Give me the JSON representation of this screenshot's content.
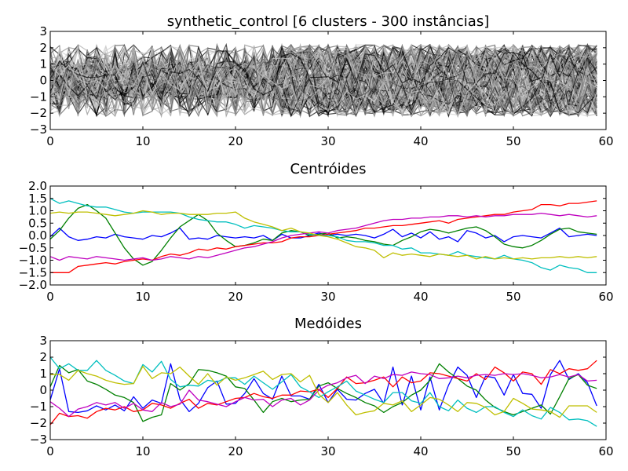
{
  "figure": {
    "background": "#ffffff"
  },
  "chart_data": [
    {
      "type": "line",
      "title": "synthetic_control [6 clusters - 300 instâncias]",
      "xlabel": "",
      "ylabel": "",
      "xlim": [
        0,
        60
      ],
      "ylim": [
        -3,
        3
      ],
      "xticks": [
        "0",
        "10",
        "20",
        "30",
        "40",
        "50",
        "60"
      ],
      "yticks": [
        "3",
        "2",
        "1",
        "0",
        "−1",
        "−2",
        "−3"
      ],
      "grid": false,
      "note_series": "300 grayscale instance series, drawn as an aggregate band",
      "band_colors": [
        "#000000",
        "#555555",
        "#888888",
        "#aaaaaa",
        "#cccccc"
      ],
      "regimes": [
        {
          "from": 0,
          "to": 30,
          "center": 0.0,
          "spread": 2.2
        },
        {
          "from": 25,
          "to": 60,
          "center": 1.0,
          "spread": 1.2
        },
        {
          "from": 25,
          "to": 60,
          "center": -1.0,
          "spread": 1.2
        }
      ]
    },
    {
      "type": "line",
      "title": "Centróides",
      "xlabel": "",
      "ylabel": "",
      "xlim": [
        0,
        60
      ],
      "ylim": [
        -2.0,
        2.0
      ],
      "xticks": [
        "0",
        "10",
        "20",
        "30",
        "40",
        "50",
        "60"
      ],
      "yticks": [
        "2.0",
        "1.5",
        "1.0",
        "0.5",
        "0.0",
        "−0.5",
        "−1.0",
        "−1.5",
        "−2.0"
      ],
      "grid": false,
      "series": [
        {
          "color": "#0000ff",
          "values": [
            -0.05,
            0.3,
            -0.05,
            -0.2,
            -0.15,
            -0.05,
            -0.1,
            0.05,
            -0.05,
            -0.1,
            -0.15,
            0.0,
            -0.05,
            0.1,
            0.3,
            -0.15,
            -0.1,
            -0.15,
            0.0,
            -0.05,
            -0.1,
            -0.05,
            -0.1,
            0.0,
            -0.2,
            0.05,
            -0.1,
            -0.1,
            0.0,
            0.1,
            0.0,
            0.05,
            0.0,
            0.05,
            0.0,
            -0.1,
            0.05,
            0.25,
            -0.05,
            0.1,
            -0.1,
            0.15,
            -0.15,
            -0.05,
            -0.25,
            0.2,
            0.1,
            -0.1,
            0.0,
            -0.25,
            -0.05,
            0.0,
            -0.05,
            -0.1,
            0.1,
            0.3,
            -0.05,
            0.0,
            0.05,
            0.0
          ]
        },
        {
          "color": "#008000",
          "values": [
            -0.15,
            0.2,
            0.7,
            1.1,
            1.25,
            1.0,
            0.7,
            0.1,
            -0.5,
            -0.95,
            -1.2,
            -1.05,
            -0.6,
            -0.1,
            0.35,
            0.6,
            0.85,
            0.6,
            0.1,
            -0.2,
            -0.45,
            -0.4,
            -0.3,
            -0.15,
            -0.2,
            0.1,
            0.2,
            0.15,
            0.0,
            0.05,
            0.1,
            -0.1,
            -0.05,
            -0.1,
            -0.2,
            -0.25,
            -0.35,
            -0.4,
            -0.2,
            -0.05,
            0.15,
            0.25,
            0.2,
            0.1,
            0.2,
            0.3,
            0.35,
            0.2,
            -0.05,
            -0.35,
            -0.45,
            -0.5,
            -0.4,
            -0.2,
            0.05,
            0.25,
            0.3,
            0.15,
            0.1,
            0.05
          ]
        },
        {
          "color": "#ff0000",
          "values": [
            -1.5,
            -1.5,
            -1.5,
            -1.25,
            -1.2,
            -1.15,
            -1.1,
            -1.15,
            -1.05,
            -1.0,
            -0.95,
            -1.0,
            -0.85,
            -0.75,
            -0.8,
            -0.7,
            -0.55,
            -0.6,
            -0.5,
            -0.55,
            -0.45,
            -0.4,
            -0.35,
            -0.3,
            -0.3,
            -0.25,
            -0.1,
            -0.05,
            -0.05,
            0.0,
            0.05,
            0.1,
            0.15,
            0.2,
            0.3,
            0.3,
            0.35,
            0.4,
            0.4,
            0.45,
            0.5,
            0.55,
            0.6,
            0.5,
            0.65,
            0.7,
            0.75,
            0.8,
            0.85,
            0.85,
            0.95,
            1.0,
            1.05,
            1.25,
            1.25,
            1.2,
            1.3,
            1.3,
            1.35,
            1.4
          ]
        },
        {
          "color": "#00bfbf",
          "values": [
            1.5,
            1.3,
            1.4,
            1.3,
            1.2,
            1.15,
            1.15,
            1.05,
            0.95,
            0.9,
            0.95,
            0.95,
            0.95,
            0.95,
            0.9,
            0.75,
            0.65,
            0.6,
            0.55,
            0.55,
            0.45,
            0.3,
            0.4,
            0.35,
            0.3,
            0.2,
            0.15,
            0.15,
            0.05,
            0.0,
            0.0,
            -0.05,
            -0.2,
            -0.25,
            -0.25,
            -0.3,
            -0.4,
            -0.4,
            -0.55,
            -0.5,
            -0.7,
            -0.7,
            -0.75,
            -0.8,
            -0.65,
            -0.8,
            -0.85,
            -0.9,
            -0.95,
            -0.8,
            -0.95,
            -1.0,
            -1.1,
            -1.3,
            -1.4,
            -1.2,
            -1.3,
            -1.35,
            -1.5,
            -1.5
          ]
        },
        {
          "color": "#bf00bf",
          "values": [
            -0.85,
            -1.0,
            -0.85,
            -0.9,
            -0.95,
            -0.85,
            -0.9,
            -0.95,
            -1.0,
            -0.95,
            -0.9,
            -1.0,
            -0.95,
            -0.85,
            -0.9,
            -0.95,
            -0.85,
            -0.9,
            -0.8,
            -0.7,
            -0.6,
            -0.5,
            -0.45,
            -0.35,
            -0.25,
            -0.1,
            0.0,
            0.05,
            0.1,
            0.15,
            0.1,
            0.2,
            0.25,
            0.3,
            0.4,
            0.5,
            0.6,
            0.65,
            0.65,
            0.7,
            0.7,
            0.75,
            0.75,
            0.8,
            0.8,
            0.75,
            0.8,
            0.75,
            0.8,
            0.8,
            0.85,
            0.85,
            0.85,
            0.9,
            0.85,
            0.8,
            0.85,
            0.8,
            0.75,
            0.8
          ]
        },
        {
          "color": "#bfbf00",
          "values": [
            0.9,
            0.95,
            0.9,
            0.95,
            0.95,
            0.9,
            0.85,
            0.8,
            0.85,
            0.9,
            1.0,
            0.95,
            0.85,
            0.9,
            0.9,
            0.85,
            0.85,
            0.85,
            0.9,
            0.9,
            0.95,
            0.7,
            0.55,
            0.45,
            0.35,
            0.2,
            0.3,
            0.15,
            0.1,
            0.0,
            -0.05,
            -0.15,
            -0.3,
            -0.45,
            -0.5,
            -0.6,
            -0.9,
            -0.7,
            -0.8,
            -0.75,
            -0.8,
            -0.85,
            -0.75,
            -0.8,
            -0.85,
            -0.8,
            -0.95,
            -0.85,
            -0.95,
            -0.9,
            -0.95,
            -0.9,
            -0.95,
            -0.9,
            -0.9,
            -0.85,
            -0.9,
            -0.85,
            -0.9,
            -0.85
          ]
        }
      ]
    },
    {
      "type": "line",
      "title": "Medóides",
      "xlabel": "",
      "ylabel": "",
      "xlim": [
        0,
        60
      ],
      "ylim": [
        -3,
        3
      ],
      "xticks": [
        "0",
        "10",
        "20",
        "30",
        "40",
        "50",
        "60"
      ],
      "yticks": [
        "3",
        "2",
        "1",
        "0",
        "−1",
        "−2",
        "−3"
      ],
      "grid": false,
      "series": [
        {
          "color": "#0000ff",
          "values": [
            -0.6,
            1.3,
            -1.3,
            -1.35,
            -1.25,
            -0.95,
            -1.2,
            -0.9,
            -1.25,
            -0.4,
            -1.1,
            -0.6,
            -0.8,
            1.6,
            -0.55,
            -1.3,
            -0.8,
            0.15,
            0.55,
            -0.85,
            -0.8,
            -0.2,
            0.7,
            -0.2,
            -0.55,
            0.85,
            -0.35,
            -0.35,
            -0.55,
            0.35,
            -0.75,
            0.05,
            -0.55,
            -0.6,
            -0.2,
            0.05,
            -0.8,
            1.4,
            -0.9,
            0.85,
            -1.2,
            0.8,
            -1.2,
            0.3,
            1.4,
            0.9,
            -0.45,
            0.85,
            0.75,
            -0.3,
            0.95,
            -0.2,
            -0.25,
            -1.1,
            0.95,
            1.8,
            0.65,
            1.0,
            0.45,
            -0.95
          ]
        },
        {
          "color": "#008000",
          "values": [
            0.2,
            1.5,
            1.05,
            1.25,
            0.55,
            0.35,
            0.05,
            -0.3,
            -0.45,
            -0.75,
            -1.9,
            -1.65,
            -1.5,
            0.4,
            0.0,
            0.4,
            1.25,
            1.2,
            1.05,
            0.85,
            0.2,
            0.1,
            -0.6,
            -1.35,
            -0.7,
            -0.5,
            -0.7,
            -0.6,
            -0.55,
            0.25,
            0.45,
            0.1,
            -0.2,
            -0.45,
            -0.75,
            -0.95,
            -1.35,
            -1.0,
            -0.75,
            -0.3,
            0.0,
            0.6,
            1.6,
            1.1,
            0.7,
            0.25,
            0.0,
            -0.6,
            -1.05,
            -1.3,
            -1.5,
            -1.3,
            -1.1,
            -0.9,
            -1.45,
            -0.4,
            0.7,
            0.95,
            0.3,
            0.1
          ]
        },
        {
          "color": "#ff0000",
          "values": [
            -2.1,
            -1.4,
            -1.6,
            -1.55,
            -1.7,
            -1.3,
            -1.1,
            -1.2,
            -1.0,
            -1.3,
            -1.2,
            -0.8,
            -0.9,
            -1.1,
            -0.8,
            -0.55,
            -1.1,
            -0.8,
            -0.9,
            -0.7,
            -0.5,
            -0.45,
            -0.2,
            -0.4,
            -0.5,
            -0.3,
            -0.3,
            -0.05,
            -0.1,
            0.05,
            -0.45,
            0.1,
            0.8,
            0.4,
            0.45,
            0.6,
            0.8,
            0.2,
            0.8,
            0.45,
            0.55,
            1.05,
            1.0,
            0.85,
            0.7,
            0.55,
            1.0,
            0.65,
            1.4,
            1.05,
            0.55,
            1.1,
            1.0,
            0.35,
            1.25,
            1.0,
            1.3,
            1.2,
            1.3,
            1.8
          ]
        },
        {
          "color": "#00bfbf",
          "values": [
            2.0,
            1.3,
            1.6,
            1.2,
            1.2,
            1.8,
            1.2,
            0.9,
            0.55,
            0.4,
            1.55,
            1.1,
            1.75,
            0.65,
            0.2,
            0.3,
            0.25,
            0.6,
            0.5,
            0.75,
            0.75,
            0.35,
            0.85,
            0.45,
            0.05,
            0.5,
            0.95,
            0.2,
            -0.1,
            -0.45,
            -0.1,
            0.2,
            0.55,
            -0.05,
            -0.3,
            -0.55,
            -0.75,
            -0.15,
            -0.15,
            -0.65,
            -0.8,
            -0.15,
            -1.0,
            -1.25,
            -0.6,
            -1.1,
            -1.35,
            -1.0,
            -1.0,
            -1.35,
            -1.6,
            -1.2,
            -1.55,
            -1.75,
            -1.05,
            -1.35,
            -1.8,
            -1.75,
            -1.85,
            -2.2
          ]
        },
        {
          "color": "#bf00bf",
          "values": [
            -0.7,
            -1.1,
            -1.6,
            -1.15,
            -1.0,
            -0.75,
            -0.9,
            -0.75,
            -1.1,
            -0.8,
            -1.2,
            -1.3,
            -0.75,
            -1.0,
            -0.85,
            0.0,
            -0.6,
            -0.7,
            -0.85,
            -1.0,
            -0.7,
            -0.45,
            -0.6,
            -0.55,
            -1.0,
            -0.6,
            -0.5,
            -0.9,
            -0.6,
            0.0,
            0.3,
            0.45,
            0.75,
            0.9,
            0.4,
            0.85,
            0.7,
            0.95,
            0.9,
            1.1,
            1.0,
            0.95,
            0.7,
            0.75,
            0.85,
            0.75,
            0.9,
            0.95,
            0.9,
            1.0,
            0.95,
            1.0,
            0.9,
            0.75,
            0.8,
            0.95,
            0.8,
            0.95,
            0.55,
            0.6
          ]
        },
        {
          "color": "#bfbf00",
          "values": [
            0.95,
            0.95,
            0.6,
            1.2,
            1.0,
            0.85,
            0.6,
            0.45,
            0.35,
            0.4,
            1.45,
            0.7,
            1.05,
            1.0,
            1.4,
            0.85,
            0.35,
            1.0,
            0.3,
            0.8,
            0.6,
            0.75,
            0.95,
            1.15,
            0.65,
            0.95,
            1.0,
            0.5,
            0.9,
            -0.25,
            -0.75,
            -0.15,
            -0.9,
            -1.5,
            -1.35,
            -1.25,
            -0.8,
            -0.9,
            -0.65,
            -1.3,
            -0.9,
            -0.45,
            -0.55,
            -0.9,
            -1.3,
            -0.75,
            -0.8,
            -1.05,
            -1.5,
            -1.3,
            -0.5,
            -0.8,
            -1.15,
            -1.2,
            -1.3,
            -1.65,
            -0.95,
            -0.95,
            -0.95,
            -1.35
          ]
        }
      ]
    }
  ]
}
